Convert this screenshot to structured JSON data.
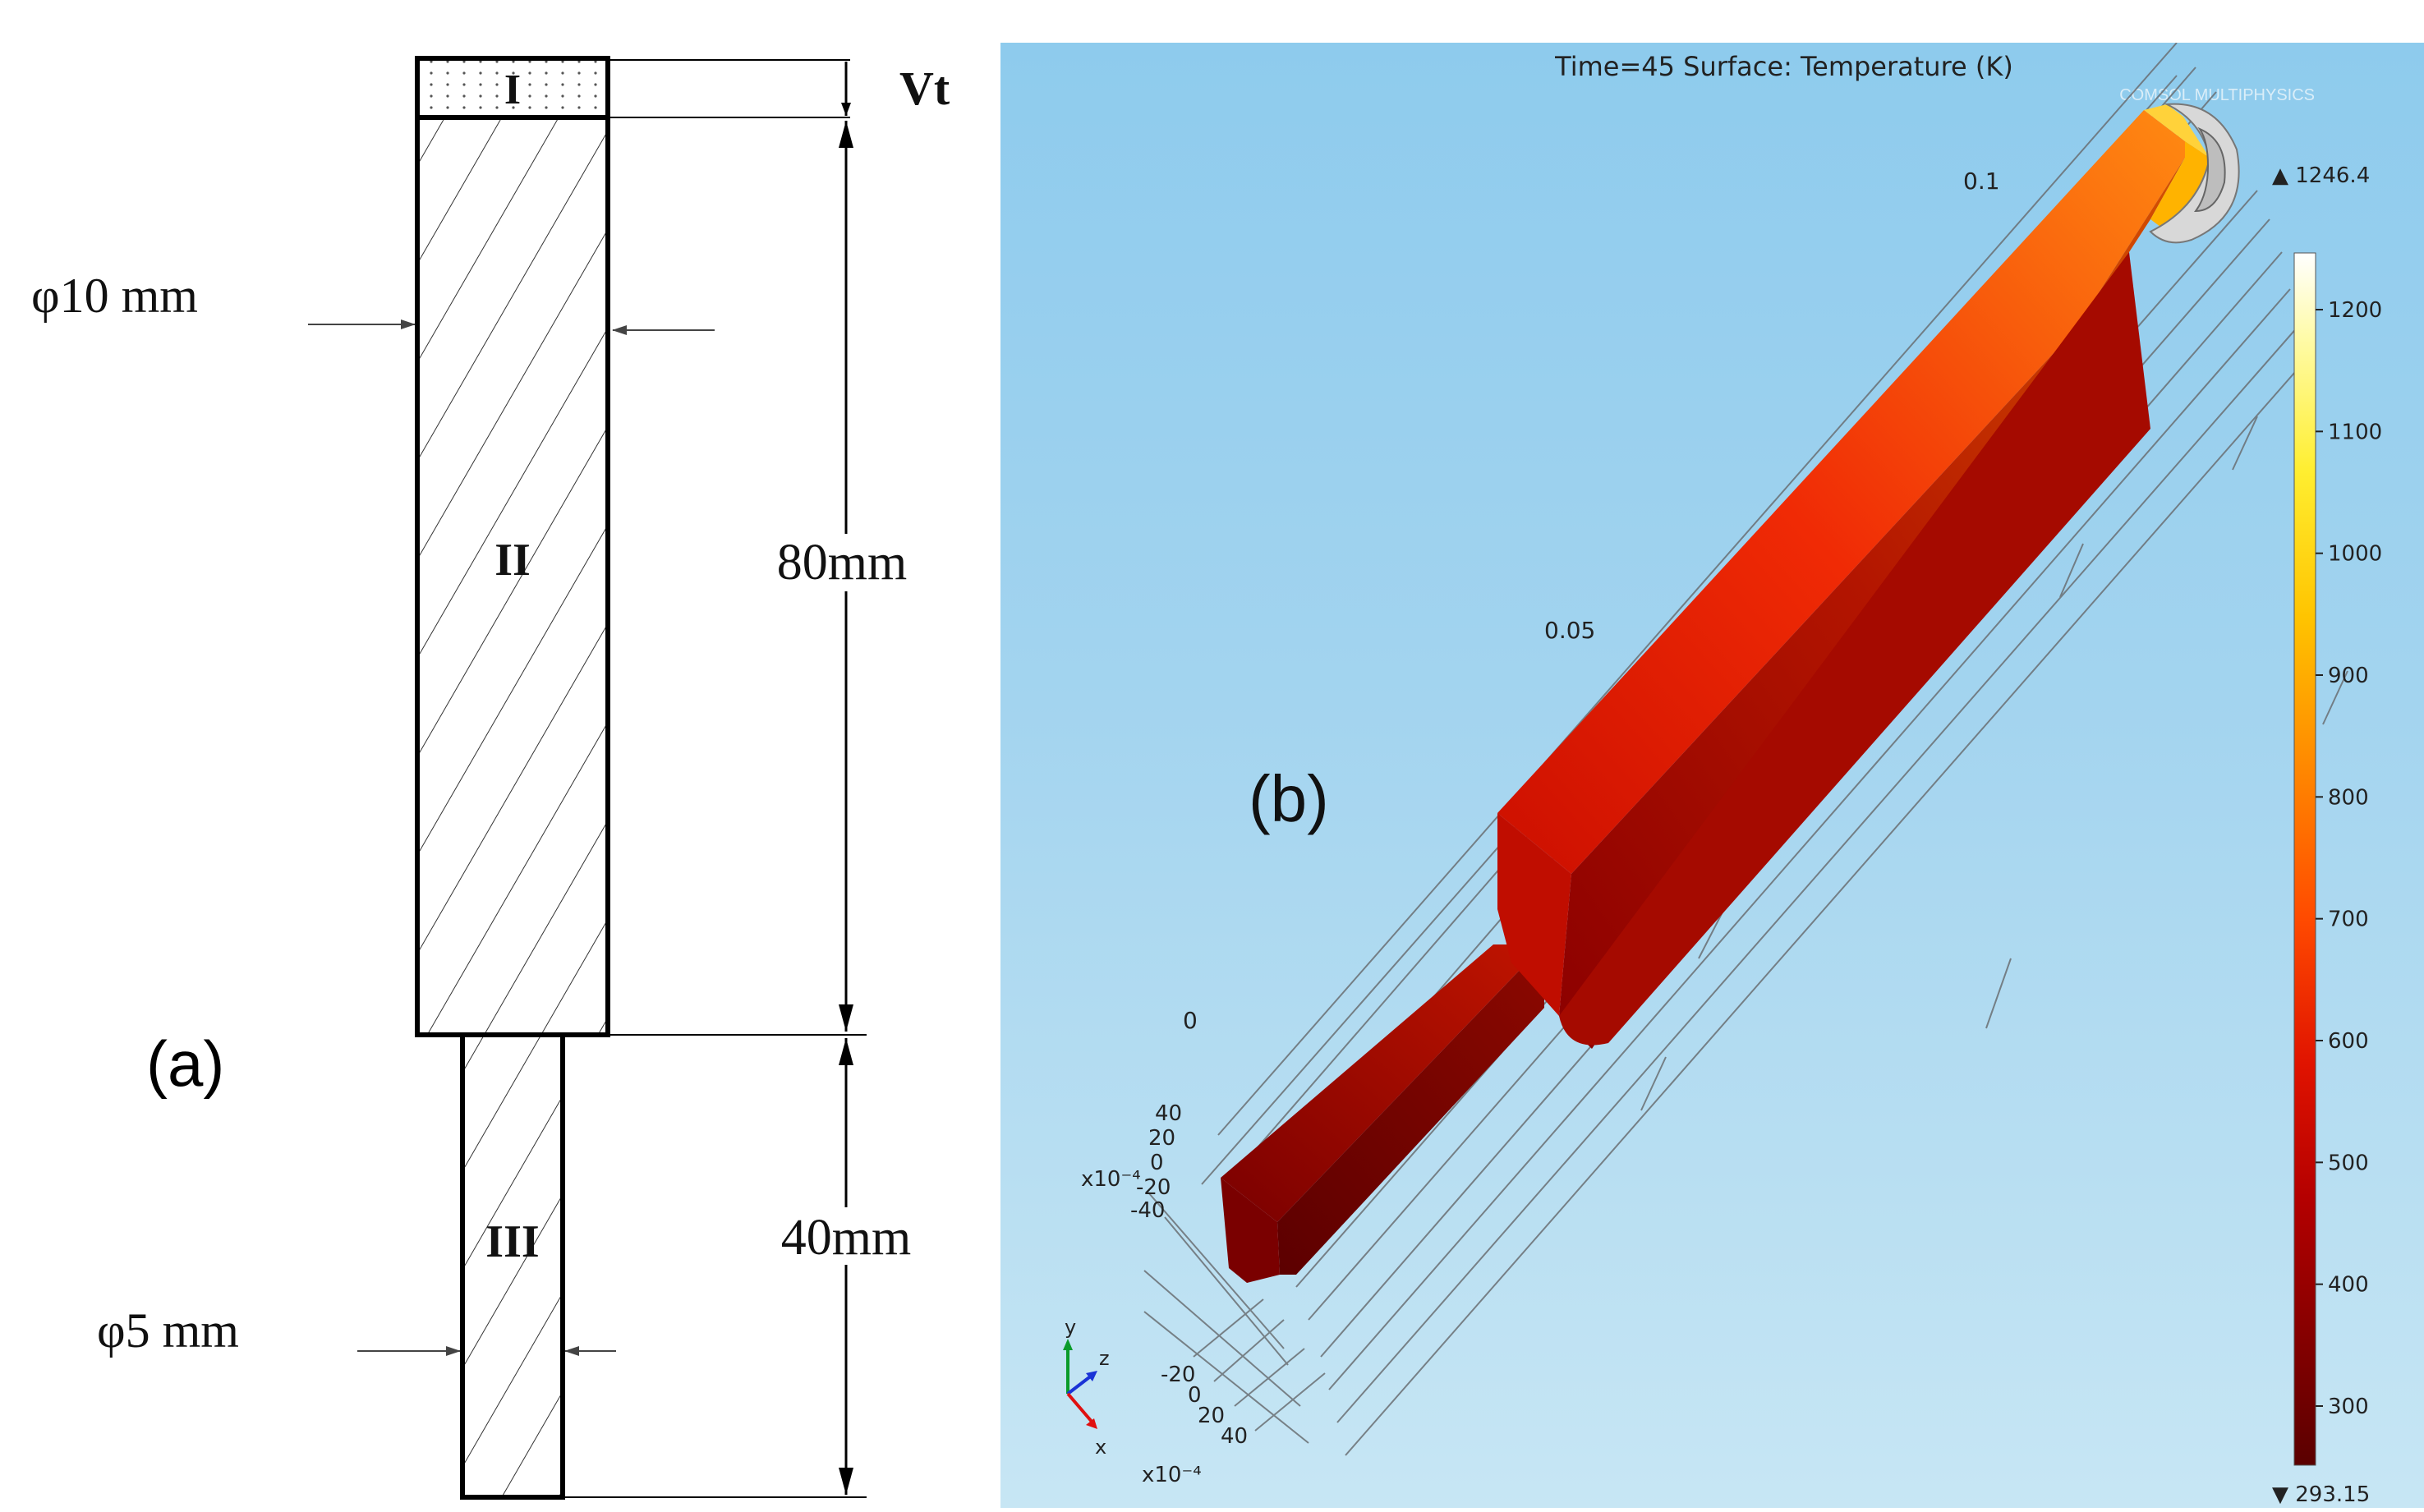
{
  "panel_a": {
    "label": "(a)",
    "sections": {
      "top": "I",
      "middle": "II",
      "bottom": "III"
    },
    "dimensions": {
      "top_height": "Vt",
      "middle_length": "80mm",
      "bottom_length": "40mm",
      "middle_diameter": "φ10 mm",
      "bottom_diameter": "φ5 mm"
    }
  },
  "panel_b": {
    "label": "(b)",
    "header": "Time=45   Surface: Temperature (K)",
    "logo": "COMSOL MULTIPHYSICS",
    "axis_ticks": {
      "far": "0.1",
      "mid": "0.05",
      "near": "0"
    },
    "y_scale": {
      "ticks": [
        "40",
        "20",
        "0",
        "-20",
        "-40"
      ],
      "unit": "x10⁻⁴"
    },
    "x_scale": {
      "ticks": [
        "-20",
        "0",
        "20",
        "40"
      ],
      "unit": "x10⁻⁴"
    },
    "triad": {
      "y": "y",
      "z": "z",
      "x": "x"
    },
    "colorbar": {
      "max_label": "▲ 1246.4",
      "min_label": "▼ 293.15",
      "ticks": [
        "1200",
        "1100",
        "1000",
        "900",
        "800",
        "700",
        "600",
        "500",
        "400",
        "300"
      ]
    }
  }
}
